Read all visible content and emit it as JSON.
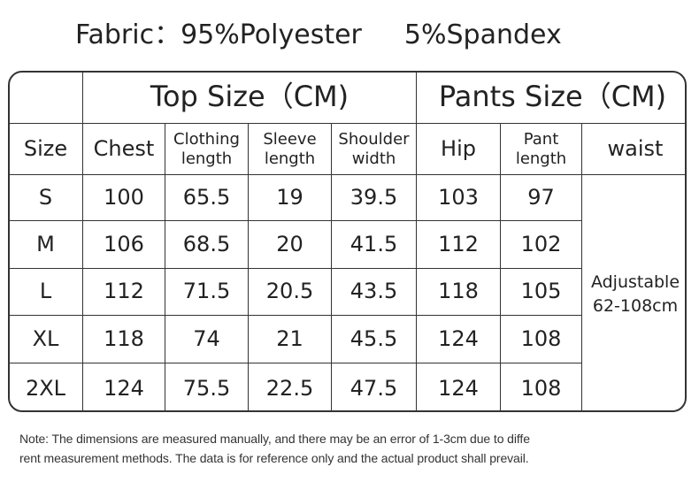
{
  "fabric": [
    "Fabric：95%Polyester",
    "5%Spandex"
  ],
  "table": {
    "top_header": "Top Size（CM)",
    "pants_header": "Pants Size（CM)",
    "columns": [
      "Size",
      "Chest",
      "Clothing length",
      "Sleeve length",
      "Shoulder width",
      "Hip",
      "Pant length",
      "waist"
    ],
    "column_lines": [
      [
        "Size"
      ],
      [
        "Chest"
      ],
      [
        "Clothing",
        "length"
      ],
      [
        "Sleeve",
        "length"
      ],
      [
        "Shoulder",
        "width"
      ],
      [
        "Hip"
      ],
      [
        "Pant",
        "length"
      ],
      [
        "waist"
      ]
    ],
    "rows": [
      [
        "S",
        "100",
        "65.5",
        "19",
        "39.5",
        "103",
        "97"
      ],
      [
        "M",
        "106",
        "68.5",
        "20",
        "41.5",
        "112",
        "102"
      ],
      [
        "L",
        "112",
        "71.5",
        "20.5",
        "43.5",
        "118",
        "105"
      ],
      [
        "XL",
        "118",
        "74",
        "21",
        "45.5",
        "124",
        "108"
      ],
      [
        "2XL",
        "124",
        "75.5",
        "22.5",
        "47.5",
        "124",
        "108"
      ]
    ],
    "waist_value": [
      "Adjustable",
      "62-108cm"
    ]
  },
  "note": [
    "Note: The dimensions are measured manually, and there may be an error of 1-3cm due to diffe",
    "rent measurement methods. The data is for reference only and the actual product shall prevail."
  ]
}
